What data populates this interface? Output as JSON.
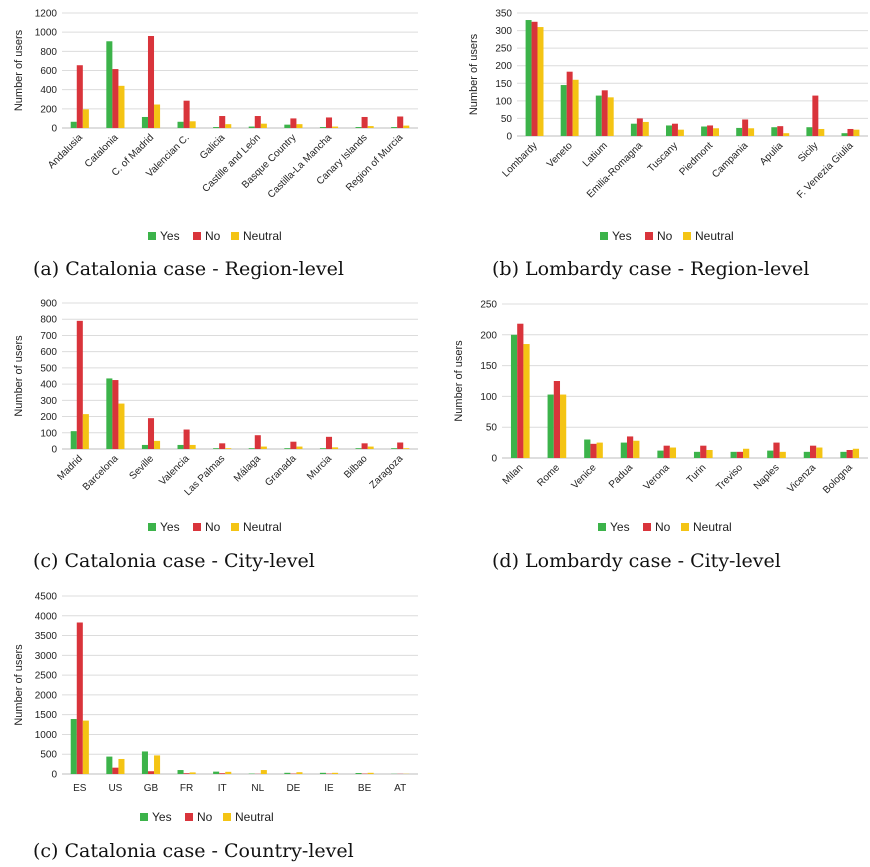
{
  "colors": {
    "Yes": "#3cb34a",
    "No": "#d9343b",
    "Neutral": "#f4c414"
  },
  "captions": [
    "(a) Catalonia case - Region-level",
    "(b) Lombardy case - Region-level",
    "(c) Catalonia case - City-level",
    "(d) Lombardy case - City-level",
    "(c) Catalonia case - Country-level"
  ],
  "chart_data": [
    {
      "type": "bar",
      "ylabel": "Number of users",
      "ylim": [
        0,
        1200
      ],
      "yticks": [
        0,
        200,
        400,
        600,
        800,
        1000,
        1200
      ],
      "grid": true,
      "legend": "bottom",
      "categories": [
        "Andalusia",
        "Catalonia",
        "C. of Madrid",
        "Valencian C.",
        "Galicia",
        "Castille and León",
        "Basque Country",
        "Castilla-La Mancha",
        "Canary Islands",
        "Region of Murcia"
      ],
      "series": [
        {
          "name": "Yes",
          "values": [
            65,
            905,
            115,
            65,
            10,
            15,
            35,
            10,
            10,
            10
          ]
        },
        {
          "name": "No",
          "values": [
            655,
            615,
            960,
            285,
            125,
            125,
            100,
            110,
            115,
            120
          ]
        },
        {
          "name": "Neutral",
          "values": [
            195,
            440,
            245,
            70,
            40,
            45,
            40,
            15,
            20,
            25
          ]
        }
      ]
    },
    {
      "type": "bar",
      "ylabel": "Number of users",
      "ylim": [
        0,
        350
      ],
      "yticks": [
        0,
        50,
        100,
        150,
        200,
        250,
        300,
        350
      ],
      "grid": true,
      "legend": "bottom",
      "categories": [
        "Lombardy",
        "Veneto",
        "Latium",
        "Emilia-Romagna",
        "Tuscany",
        "Piedmont",
        "Campania",
        "Apulia",
        "Sicily",
        "F. Venezia Giulia"
      ],
      "series": [
        {
          "name": "Yes",
          "values": [
            330,
            145,
            115,
            35,
            30,
            27,
            23,
            25,
            25,
            8
          ]
        },
        {
          "name": "No",
          "values": [
            325,
            183,
            130,
            50,
            35,
            30,
            47,
            28,
            115,
            20
          ]
        },
        {
          "name": "Neutral",
          "values": [
            310,
            160,
            110,
            40,
            18,
            22,
            22,
            8,
            20,
            18
          ]
        }
      ]
    },
    {
      "type": "bar",
      "ylabel": "Number of users",
      "ylim": [
        0,
        900
      ],
      "yticks": [
        0,
        100,
        200,
        300,
        400,
        500,
        600,
        700,
        800,
        900
      ],
      "grid": true,
      "legend": "bottom",
      "categories": [
        "Madrid",
        "Barcelona",
        "Seville",
        "Valencia",
        "Las Palmas",
        "Málaga",
        "Granada",
        "Murcia",
        "Bilbao",
        "Zaragoza"
      ],
      "series": [
        {
          "name": "Yes",
          "values": [
            110,
            435,
            25,
            25,
            5,
            5,
            5,
            5,
            5,
            5
          ]
        },
        {
          "name": "No",
          "values": [
            790,
            425,
            190,
            120,
            35,
            85,
            45,
            75,
            35,
            40
          ]
        },
        {
          "name": "Neutral",
          "values": [
            215,
            280,
            50,
            25,
            5,
            15,
            15,
            10,
            15,
            5
          ]
        }
      ]
    },
    {
      "type": "bar",
      "ylabel": "Number of users",
      "ylim": [
        0,
        250
      ],
      "yticks": [
        0,
        50,
        100,
        150,
        200,
        250
      ],
      "grid": true,
      "legend": "bottom",
      "categories": [
        "Milan",
        "Rome",
        "Venice",
        "Padua",
        "Verona",
        "Turin",
        "Treviso",
        "Naples",
        "Vicenza",
        "Bologna"
      ],
      "series": [
        {
          "name": "Yes",
          "values": [
            200,
            103,
            30,
            25,
            12,
            10,
            10,
            12,
            10,
            10
          ]
        },
        {
          "name": "No",
          "values": [
            218,
            125,
            23,
            35,
            20,
            20,
            10,
            25,
            20,
            13
          ]
        },
        {
          "name": "Neutral",
          "values": [
            185,
            103,
            25,
            28,
            17,
            13,
            15,
            10,
            17,
            15
          ]
        }
      ]
    },
    {
      "type": "bar",
      "ylabel": "Number of users",
      "ylim": [
        0,
        4500
      ],
      "yticks": [
        0,
        500,
        1000,
        1500,
        2000,
        2500,
        3000,
        3500,
        4000,
        4500
      ],
      "grid": true,
      "legend": "bottom",
      "categories": [
        "ES",
        "US",
        "GB",
        "FR",
        "IT",
        "NL",
        "DE",
        "IE",
        "BE",
        "AT"
      ],
      "series": [
        {
          "name": "Yes",
          "values": [
            1390,
            440,
            570,
            100,
            60,
            10,
            30,
            30,
            25,
            5
          ]
        },
        {
          "name": "No",
          "values": [
            3830,
            160,
            70,
            20,
            20,
            5,
            10,
            10,
            10,
            5
          ]
        },
        {
          "name": "Neutral",
          "values": [
            1350,
            380,
            470,
            40,
            55,
            100,
            45,
            30,
            30,
            5
          ]
        }
      ]
    }
  ]
}
